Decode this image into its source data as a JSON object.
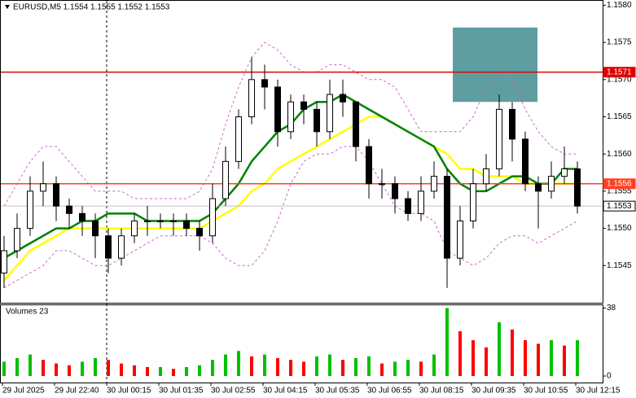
{
  "chart_data": {
    "type": "candlestick",
    "title": "EURUSD,M5  1.1554 1.1555 1.1552 1.1553",
    "categories": [
      "29 Jul 2025",
      null,
      null,
      null,
      "29 Jul 22:40",
      null,
      null,
      null,
      "30 Jul 00:15",
      null,
      null,
      null,
      "30 Jul 01:35",
      null,
      null,
      null,
      "30 Jul 02:55",
      null,
      null,
      null,
      "30 Jul 04:15",
      null,
      null,
      null,
      "30 Jul 05:35",
      null,
      null,
      null,
      "30 Jul 06:55",
      null,
      null,
      null,
      "30 Jul 08:15",
      null,
      null,
      null,
      "30 Jul 09:35",
      null,
      null,
      null,
      "30 Jul 10:55",
      null,
      null,
      null,
      "30 Jul 12:15"
    ],
    "open": [
      1.1544,
      1.1547,
      1.155,
      1.1555,
      1.1556,
      1.1553,
      1.1552,
      1.1551,
      1.1549,
      1.1546,
      1.1549,
      1.1551,
      1.1551,
      1.1551,
      1.1551,
      1.155,
      1.1549,
      1.1554,
      1.1559,
      1.1565,
      1.157,
      1.1569,
      1.1563,
      1.1567,
      1.1566,
      1.1563,
      1.1568,
      1.1567,
      1.1561,
      1.1556,
      1.1556,
      1.1554,
      1.1552,
      1.1555,
      1.1557,
      1.1546,
      1.1551,
      1.1556,
      1.1558,
      1.1566,
      1.1562,
      1.1556,
      1.1555,
      1.1557,
      1.1558
    ],
    "high": [
      1.1549,
      1.1552,
      1.1557,
      1.1559,
      1.1557,
      1.1554,
      1.1553,
      1.1552,
      1.155,
      1.155,
      1.1552,
      1.1553,
      1.1552,
      1.1552,
      1.1552,
      1.1551,
      1.1556,
      1.1561,
      1.1566,
      1.1573,
      1.1572,
      1.157,
      1.1568,
      1.1568,
      1.1567,
      1.157,
      1.157,
      1.1567,
      1.1562,
      1.1558,
      1.1557,
      1.1555,
      1.1557,
      1.1559,
      1.1558,
      1.1553,
      1.1558,
      1.156,
      1.1568,
      1.1567,
      1.1563,
      1.1557,
      1.1559,
      1.1561,
      1.1559
    ],
    "low": [
      1.1542,
      1.1546,
      1.1549,
      1.1553,
      1.1551,
      1.155,
      1.1549,
      1.1546,
      1.1544,
      1.1545,
      1.1548,
      1.1549,
      1.155,
      1.1549,
      1.1549,
      1.1547,
      1.1548,
      1.1553,
      1.1558,
      1.1564,
      1.1566,
      1.1561,
      1.1562,
      1.1564,
      1.1561,
      1.1562,
      1.1565,
      1.1559,
      1.1554,
      1.1554,
      1.1552,
      1.1551,
      1.1551,
      1.1554,
      1.1542,
      1.1545,
      1.155,
      1.1555,
      1.1557,
      1.1559,
      1.1555,
      1.155,
      1.1554,
      1.1556,
      1.1552
    ],
    "close": [
      1.1547,
      1.155,
      1.1555,
      1.1556,
      1.1553,
      1.1552,
      1.1551,
      1.1549,
      1.1546,
      1.1549,
      1.1551,
      1.1551,
      1.1551,
      1.1551,
      1.155,
      1.1549,
      1.1554,
      1.1559,
      1.1565,
      1.157,
      1.1569,
      1.1563,
      1.1567,
      1.1566,
      1.1563,
      1.1568,
      1.1567,
      1.1561,
      1.1556,
      1.1556,
      1.1554,
      1.1552,
      1.1555,
      1.1557,
      1.1546,
      1.1551,
      1.1556,
      1.1558,
      1.1566,
      1.1562,
      1.1556,
      1.1555,
      1.1557,
      1.1558,
      1.1553
    ],
    "overlays": [
      {
        "color": "#cc66cc",
        "dashed": true,
        "values": [
          1.1553,
          1.1556,
          1.1559,
          1.1561,
          1.1561,
          1.1559,
          1.1557,
          1.1555,
          1.1555,
          1.1555,
          1.1554,
          1.1554,
          1.1554,
          1.1554,
          1.1554,
          1.1555,
          1.1558,
          1.1564,
          1.1569,
          1.1573,
          1.1575,
          1.1574,
          1.1572,
          1.1571,
          1.1571,
          1.1572,
          1.1572,
          1.1571,
          1.157,
          1.157,
          1.1569,
          1.1566,
          1.1563,
          1.1563,
          1.1563,
          1.1563,
          1.1565,
          1.1569,
          1.1571,
          1.157,
          1.1566,
          1.1563,
          1.1561,
          1.156,
          1.156
        ]
      },
      {
        "color": "#cc66cc",
        "dashed": true,
        "values": [
          1.1542,
          1.1543,
          1.1544,
          1.1545,
          1.1547,
          1.1547,
          1.1546,
          1.1545,
          1.1545,
          1.1546,
          1.1547,
          1.1548,
          1.1549,
          1.1549,
          1.1549,
          1.1549,
          1.1548,
          1.1546,
          1.1545,
          1.1545,
          1.1547,
          1.1551,
          1.1556,
          1.1559,
          1.156,
          1.156,
          1.1561,
          1.1561,
          1.1559,
          1.1556,
          1.1553,
          1.1552,
          1.1552,
          1.1551,
          1.1547,
          1.1546,
          1.1545,
          1.1546,
          1.1548,
          1.1549,
          1.1549,
          1.1548,
          1.1549,
          1.155,
          1.1551
        ]
      },
      {
        "color": "#ffff00",
        "dashed": false,
        "values": [
          1.1543,
          1.1545,
          1.1547,
          1.1548,
          1.1549,
          1.155,
          1.155,
          1.155,
          1.155,
          1.155,
          1.155,
          1.155,
          1.155,
          1.155,
          1.155,
          1.155,
          1.1551,
          1.1552,
          1.1553,
          1.1555,
          1.1556,
          1.1558,
          1.1559,
          1.156,
          1.1561,
          1.1562,
          1.1563,
          1.1564,
          1.1565,
          1.1565,
          1.1564,
          1.1563,
          1.1562,
          1.1561,
          1.156,
          1.1558,
          1.1558,
          1.1557,
          1.1557,
          1.1557,
          1.1556,
          1.1556,
          1.1556,
          1.1556,
          1.1556
        ]
      },
      {
        "color": "#008000",
        "dashed": false,
        "values": [
          1.1546,
          1.1547,
          1.1548,
          1.1549,
          1.155,
          1.155,
          1.1551,
          1.1551,
          1.1552,
          1.1552,
          1.1552,
          1.1551,
          1.1551,
          1.1551,
          1.1551,
          1.1551,
          1.1552,
          1.1554,
          1.1556,
          1.1559,
          1.1561,
          1.1563,
          1.1564,
          1.1566,
          1.1567,
          1.1567,
          1.1568,
          1.1567,
          1.1566,
          1.1565,
          1.1564,
          1.1563,
          1.1562,
          1.1561,
          1.1558,
          1.1556,
          1.1555,
          1.1555,
          1.1556,
          1.1557,
          1.1557,
          1.1556,
          1.1556,
          1.1558,
          1.1558
        ]
      }
    ],
    "ylim": [
      1.154,
      1.15807
    ],
    "yticks": [
      {
        "value": 1.158,
        "label": "1.1580"
      },
      1.1575,
      {
        "value": 1.157,
        "label": "1.1570"
      },
      1.1565,
      {
        "value": 1.156,
        "label": "1.1560"
      },
      1.1555,
      {
        "value": 1.155,
        "label": "1.1550"
      },
      1.1545
    ],
    "levels": [
      {
        "value": 1.1571,
        "color": "#e00000",
        "text_color": "#ffffff"
      },
      {
        "value": 1.1556,
        "color": "#ff4020",
        "text_color": "#ffffff"
      },
      {
        "value": 1.1553,
        "color": "#c0c0c0",
        "text_color": "#000000"
      }
    ],
    "zone": {
      "high": 1.1577,
      "low": 1.1567,
      "start": 34,
      "end": 40,
      "color": "#5f9ea0"
    },
    "separator": 8,
    "volume_title": "Volumes 23",
    "volumes": [
      8,
      10,
      12,
      9,
      7,
      6,
      8,
      10,
      9,
      7,
      6,
      5,
      5,
      4,
      5,
      6,
      9,
      12,
      14,
      11,
      12,
      10,
      9,
      8,
      11,
      12,
      9,
      10,
      11,
      7,
      8,
      9,
      8,
      12,
      38,
      25,
      20,
      16,
      30,
      26,
      20,
      18,
      20,
      17,
      20
    ],
    "volume_ylim": [
      0,
      40
    ],
    "volume_yticks": [
      0,
      38
    ],
    "volume_up_color": "#00c000",
    "volume_down_color": "#ff0000",
    "bull_color": "#ffffff",
    "bear_color": "#000000"
  }
}
